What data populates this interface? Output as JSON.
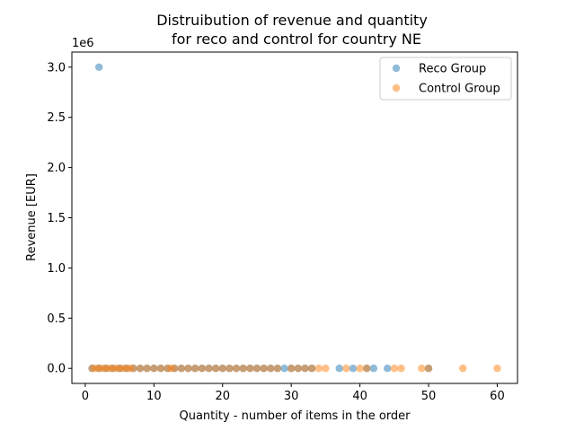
{
  "chart_data": {
    "type": "scatter",
    "title_line1": "Distruibution of revenue and quantity",
    "title_line2": "for reco and control for country NE",
    "xlabel": "Quantity - number of items in the order",
    "ylabel": "Revenue [EUR]",
    "y_offset_label": "1e6",
    "xlim": [
      -1.95,
      62.95
    ],
    "ylim": [
      -0.15,
      3.15
    ],
    "y_unit_multiplier": 1000000,
    "x_ticks": [
      0,
      10,
      20,
      30,
      40,
      50,
      60
    ],
    "x_tick_labels": [
      "0",
      "10",
      "20",
      "30",
      "40",
      "50",
      "60"
    ],
    "y_ticks": [
      0.0,
      0.5,
      1.0,
      1.5,
      2.0,
      2.5,
      3.0
    ],
    "y_tick_labels": [
      "0.0",
      "0.5",
      "1.0",
      "1.5",
      "2.0",
      "2.5",
      "3.0"
    ],
    "legend_position": "top-right",
    "marker_alpha": 0.5,
    "series": [
      {
        "name": "Reco Group",
        "color": "#1f77b4",
        "points": [
          [
            1,
            0
          ],
          [
            2,
            3.0
          ],
          [
            2,
            0
          ],
          [
            3,
            0
          ],
          [
            4,
            0
          ],
          [
            5,
            0
          ],
          [
            6,
            0
          ],
          [
            7,
            0
          ],
          [
            8,
            0
          ],
          [
            9,
            0
          ],
          [
            10,
            0
          ],
          [
            11,
            0
          ],
          [
            12,
            0
          ],
          [
            13,
            0
          ],
          [
            14,
            0
          ],
          [
            15,
            0
          ],
          [
            16,
            0
          ],
          [
            17,
            0
          ],
          [
            18,
            0
          ],
          [
            19,
            0
          ],
          [
            20,
            0
          ],
          [
            21,
            0
          ],
          [
            22,
            0
          ],
          [
            23,
            0
          ],
          [
            24,
            0
          ],
          [
            25,
            0
          ],
          [
            26,
            0
          ],
          [
            27,
            0
          ],
          [
            28,
            0
          ],
          [
            29,
            0
          ],
          [
            30,
            0
          ],
          [
            31,
            0
          ],
          [
            32,
            0
          ],
          [
            33,
            0
          ],
          [
            37,
            0
          ],
          [
            39,
            0
          ],
          [
            41,
            0
          ],
          [
            42,
            0
          ],
          [
            44,
            0
          ],
          [
            50,
            0
          ]
        ]
      },
      {
        "name": "Control Group",
        "color": "#ff7f0e",
        "points": [
          [
            1,
            0
          ],
          [
            1.5,
            0
          ],
          [
            2,
            0
          ],
          [
            2.5,
            0
          ],
          [
            3,
            0
          ],
          [
            3.5,
            0
          ],
          [
            4,
            0
          ],
          [
            4.5,
            0
          ],
          [
            5,
            0
          ],
          [
            5.5,
            0
          ],
          [
            6,
            0
          ],
          [
            6.5,
            0
          ],
          [
            7,
            0
          ],
          [
            8,
            0
          ],
          [
            9,
            0
          ],
          [
            10,
            0
          ],
          [
            11,
            0
          ],
          [
            12,
            0
          ],
          [
            12.5,
            0
          ],
          [
            13,
            0
          ],
          [
            14,
            0
          ],
          [
            15,
            0
          ],
          [
            16,
            0
          ],
          [
            17,
            0
          ],
          [
            18,
            0
          ],
          [
            19,
            0
          ],
          [
            20,
            0
          ],
          [
            21,
            0
          ],
          [
            22,
            0
          ],
          [
            23,
            0
          ],
          [
            24,
            0
          ],
          [
            25,
            0
          ],
          [
            26,
            0
          ],
          [
            27,
            0
          ],
          [
            28,
            0
          ],
          [
            30,
            0
          ],
          [
            31,
            0
          ],
          [
            32,
            0
          ],
          [
            33,
            0
          ],
          [
            34,
            0
          ],
          [
            35,
            0
          ],
          [
            38,
            0
          ],
          [
            40,
            0
          ],
          [
            41,
            0
          ],
          [
            45,
            0
          ],
          [
            46,
            0
          ],
          [
            49,
            0
          ],
          [
            50,
            0
          ],
          [
            55,
            0
          ],
          [
            60,
            0
          ]
        ]
      }
    ]
  }
}
